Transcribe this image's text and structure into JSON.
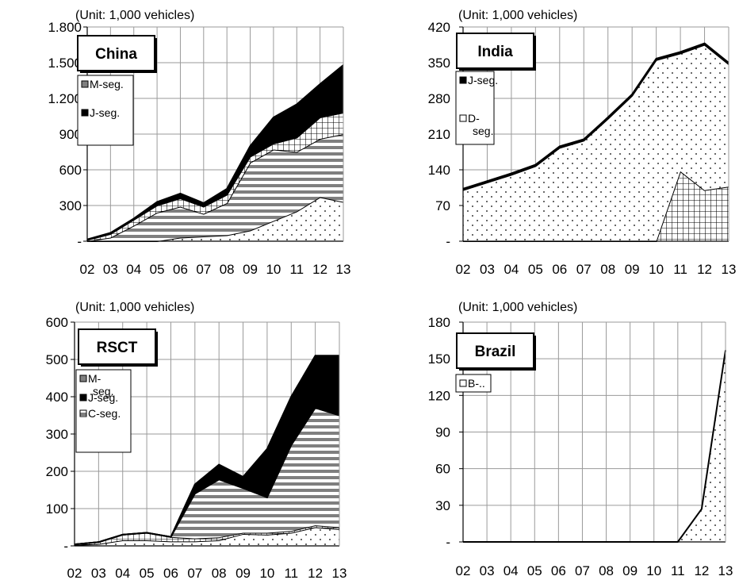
{
  "chart_data": [
    {
      "type": "area",
      "stacked": true,
      "unit_note": "(Unit: 1,000 vehicles)",
      "title_box": "China",
      "categories": [
        "02",
        "03",
        "04",
        "05",
        "06",
        "07",
        "08",
        "09",
        "10",
        "11",
        "12",
        "13"
      ],
      "yticks": [
        "-",
        "300",
        "600",
        "900",
        "1.200",
        "1.500",
        "1.800"
      ],
      "ylim": [
        0,
        1800
      ],
      "grid": true,
      "legend": [
        "M-seg.",
        "J-seg."
      ],
      "legend_placement": "top-left",
      "series": [
        {
          "pattern": "dots",
          "values": [
            0,
            0,
            0,
            0,
            30,
            40,
            50,
            90,
            170,
            250,
            370,
            330
          ]
        },
        {
          "pattern": "stripes",
          "values": [
            0,
            30,
            130,
            240,
            260,
            190,
            270,
            570,
            600,
            500,
            490,
            570
          ]
        },
        {
          "pattern": "grid",
          "values": [
            10,
            30,
            50,
            60,
            70,
            60,
            70,
            50,
            50,
            120,
            180,
            180
          ]
        },
        {
          "pattern": "solid",
          "values": [
            5,
            10,
            10,
            30,
            40,
            30,
            50,
            90,
            220,
            280,
            280,
            400
          ]
        }
      ]
    },
    {
      "type": "area",
      "stacked": true,
      "unit_note": "(Unit: 1,000 vehicles)",
      "title_box": "India",
      "categories": [
        "02",
        "03",
        "04",
        "05",
        "06",
        "07",
        "08",
        "09",
        "10",
        "11",
        "12",
        "13"
      ],
      "yticks": [
        "-",
        "70",
        "140",
        "210",
        "280",
        "350",
        "420"
      ],
      "ylim": [
        0,
        420
      ],
      "grid": true,
      "legend": [
        "J-seg.",
        "D-\nseg."
      ],
      "legend_placement": "top-left",
      "series": [
        {
          "pattern": "grid",
          "values": [
            0,
            0,
            0,
            0,
            0,
            0,
            0,
            0,
            0,
            137,
            100,
            107
          ]
        },
        {
          "pattern": "dots",
          "values": [
            100,
            115,
            130,
            147,
            183,
            197,
            240,
            285,
            355,
            231,
            285,
            240
          ]
        },
        {
          "pattern": "solid",
          "values": [
            3,
            3,
            3,
            3,
            3,
            3,
            3,
            3,
            3,
            3,
            3,
            3
          ]
        }
      ]
    },
    {
      "type": "area",
      "stacked": true,
      "unit_note": "(Unit: 1,000 vehicles)",
      "title_box": "RSCT",
      "categories": [
        "02",
        "03",
        "04",
        "05",
        "06",
        "07",
        "08",
        "09",
        "10",
        "11",
        "12",
        "13"
      ],
      "yticks": [
        "-",
        "100",
        "200",
        "300",
        "400",
        "500",
        "600"
      ],
      "ylim": [
        0,
        600
      ],
      "grid": true,
      "legend": [
        "M-\nseg.",
        "J-seg.",
        "C-seg."
      ],
      "legend_placement": "top-left",
      "series": [
        {
          "pattern": "dots",
          "values": [
            2,
            5,
            15,
            15,
            12,
            12,
            15,
            32,
            30,
            35,
            50,
            45
          ]
        },
        {
          "pattern": "grid",
          "values": [
            2,
            5,
            15,
            20,
            12,
            8,
            8,
            3,
            5,
            5,
            5,
            5
          ]
        },
        {
          "pattern": "stripes",
          "values": [
            0,
            0,
            0,
            0,
            0,
            120,
            155,
            120,
            95,
            230,
            315,
            300
          ]
        },
        {
          "pattern": "solid",
          "values": [
            0,
            0,
            0,
            0,
            0,
            25,
            40,
            30,
            130,
            130,
            140,
            160
          ]
        }
      ]
    },
    {
      "type": "area",
      "stacked": true,
      "unit_note": "(Unit: 1,000 vehicles)",
      "title_box": "Brazil",
      "categories": [
        "02",
        "03",
        "04",
        "05",
        "06",
        "07",
        "08",
        "09",
        "10",
        "11",
        "12",
        "13"
      ],
      "yticks": [
        "-",
        "30",
        "60",
        "90",
        "120",
        "150",
        "180"
      ],
      "ylim": [
        0,
        180
      ],
      "grid": true,
      "legend": [
        "B-.."
      ],
      "legend_placement": "top-left",
      "series": [
        {
          "pattern": "dots",
          "values": [
            0,
            0,
            0,
            0,
            0,
            0,
            0,
            0,
            0,
            0,
            27,
            157
          ]
        }
      ]
    }
  ]
}
